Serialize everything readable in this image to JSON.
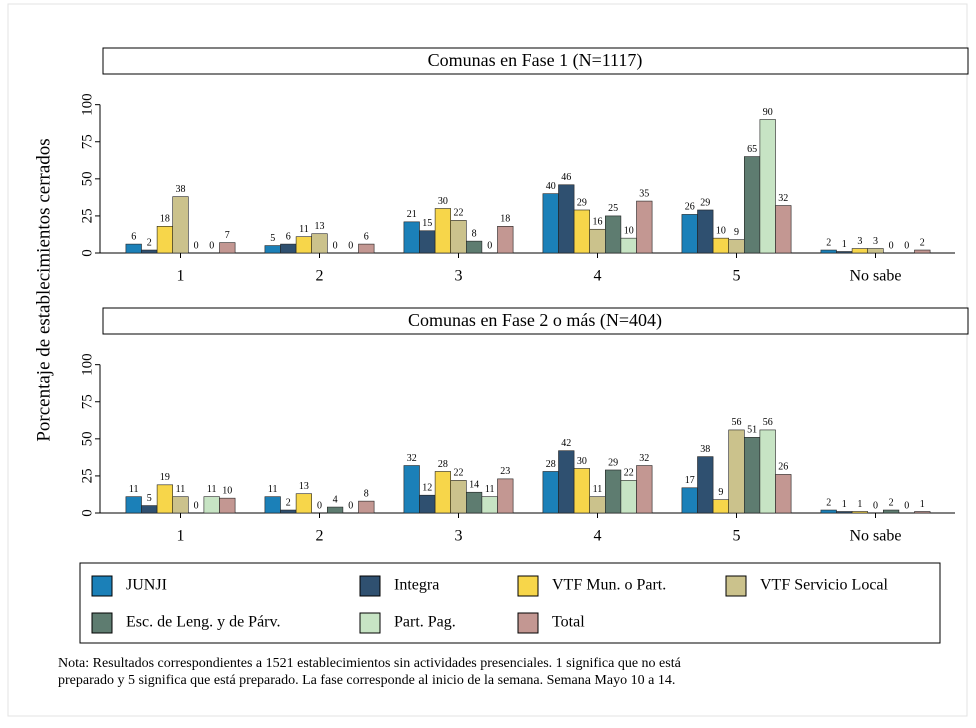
{
  "y_label": "Porcentaje de establecimientos cerrados",
  "note": [
    "Nota: Resultados correspondientes a 1521 establecimientos sin actividades presenciales. 1 significa que no está",
    "preparado y 5 significa que está preparado. La fase corresponde al inicio de la semana. Semana Mayo 10 a 14."
  ],
  "chart_data": [
    {
      "type": "bar",
      "title": "Comunas en Fase 1 (N=1117)",
      "categories": [
        "1",
        "2",
        "3",
        "4",
        "5",
        "No sabe"
      ],
      "ylim": [
        0,
        120
      ],
      "yticks": [
        0,
        25,
        50,
        75,
        100
      ],
      "series": [
        {
          "name": "JUNJI",
          "color": "#1b80b8",
          "values": [
            6,
            5,
            21,
            40,
            26,
            2
          ]
        },
        {
          "name": "Integra",
          "color": "#2f5070",
          "values": [
            2,
            6,
            15,
            46,
            29,
            1
          ]
        },
        {
          "name": "VTF Mun. o Part.",
          "color": "#f7d64a",
          "values": [
            18,
            11,
            30,
            29,
            10,
            3
          ]
        },
        {
          "name": "VTF Servicio Local",
          "color": "#cbc28c",
          "values": [
            38,
            13,
            22,
            16,
            9,
            3
          ]
        },
        {
          "name": "Esc. de Leng. y de Párv.",
          "color": "#5e7c70",
          "values": [
            0,
            0,
            8,
            25,
            65,
            0
          ]
        },
        {
          "name": "Part. Pag.",
          "color": "#c7e4c4",
          "values": [
            0,
            0,
            0,
            10,
            90,
            0
          ]
        },
        {
          "name": "Total",
          "color": "#c39792",
          "values": [
            7,
            6,
            18,
            35,
            32,
            2
          ]
        }
      ]
    },
    {
      "type": "bar",
      "title": "Comunas en Fase 2 o más (N=404)",
      "categories": [
        "1",
        "2",
        "3",
        "4",
        "5",
        "No sabe"
      ],
      "ylim": [
        0,
        120
      ],
      "yticks": [
        0,
        25,
        50,
        75,
        100
      ],
      "series": [
        {
          "name": "JUNJI",
          "color": "#1b80b8",
          "values": [
            11,
            11,
            32,
            28,
            17,
            2
          ]
        },
        {
          "name": "Integra",
          "color": "#2f5070",
          "values": [
            5,
            2,
            12,
            42,
            38,
            1
          ]
        },
        {
          "name": "VTF Mun. o Part.",
          "color": "#f7d64a",
          "values": [
            19,
            13,
            28,
            30,
            9,
            1
          ]
        },
        {
          "name": "VTF Servicio Local",
          "color": "#cbc28c",
          "values": [
            11,
            0,
            22,
            11,
            56,
            0
          ]
        },
        {
          "name": "Esc. de Leng. y de Párv.",
          "color": "#5e7c70",
          "values": [
            0,
            4,
            14,
            29,
            51,
            2
          ]
        },
        {
          "name": "Part. Pag.",
          "color": "#c7e4c4",
          "values": [
            11,
            0,
            11,
            22,
            56,
            0
          ]
        },
        {
          "name": "Total",
          "color": "#c39792",
          "values": [
            10,
            8,
            23,
            32,
            26,
            1
          ]
        }
      ]
    }
  ]
}
